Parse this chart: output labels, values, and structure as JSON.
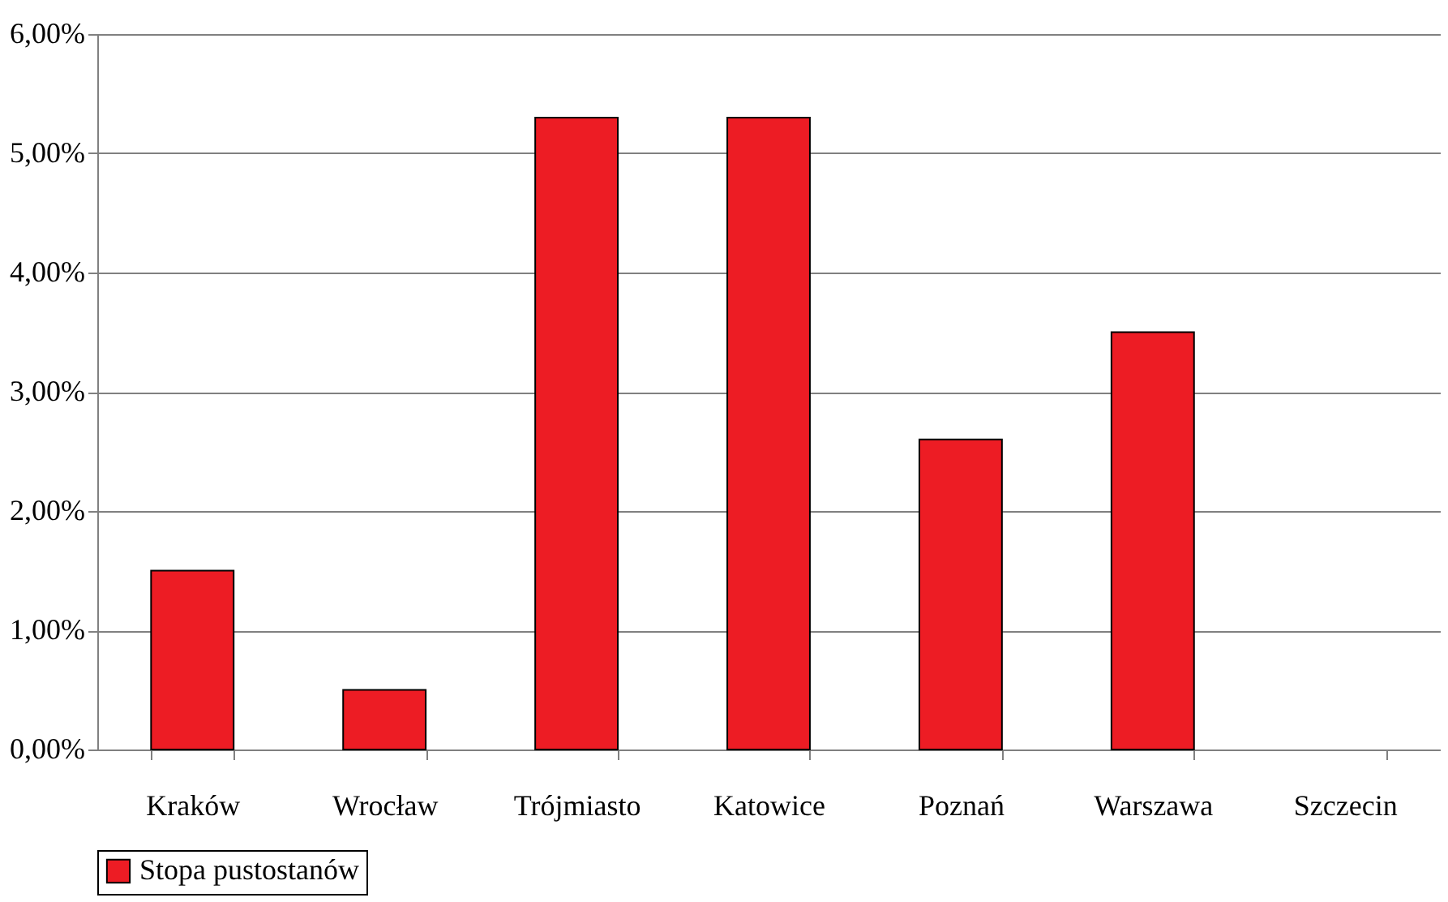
{
  "chart_data": {
    "type": "bar",
    "categories": [
      "Kraków",
      "Wrocław",
      "Trójmiasto",
      "Katowice",
      "Poznań",
      "Warszawa",
      "Szczecin"
    ],
    "series": [
      {
        "name": "Stopa pustostanów",
        "color": "#ed1c24",
        "values": [
          1.5,
          0.5,
          5.3,
          5.3,
          2.6,
          3.5,
          null
        ]
      }
    ],
    "ylim": [
      0,
      6
    ],
    "yticks": [
      {
        "value": 0,
        "label": "0,00%"
      },
      {
        "value": 1,
        "label": "1,00%"
      },
      {
        "value": 2,
        "label": "2,00%"
      },
      {
        "value": 3,
        "label": "3,00%"
      },
      {
        "value": 4,
        "label": "4,00%"
      },
      {
        "value": 5,
        "label": "5,00%"
      },
      {
        "value": 6,
        "label": "6,00%"
      }
    ],
    "grid": "y",
    "legend": "bottom"
  }
}
